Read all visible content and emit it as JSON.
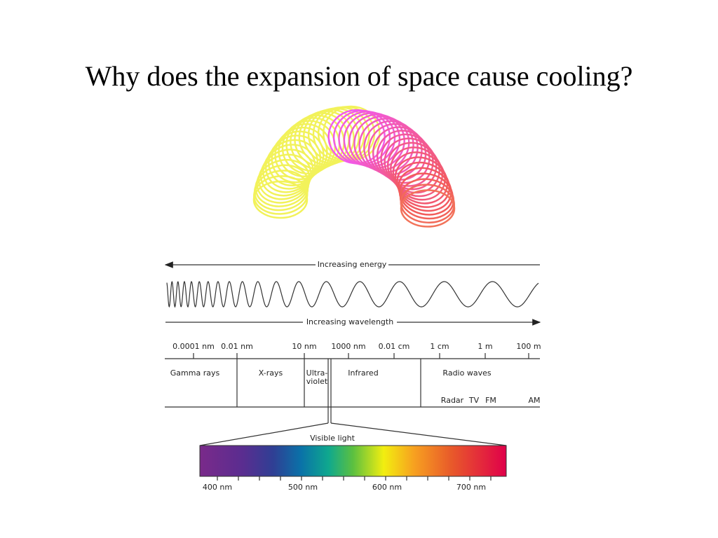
{
  "title": "Why does the expansion of space cause cooling?",
  "diagram": {
    "energy_label": "Increasing energy",
    "wavelength_label": "Increasing wavelength",
    "scale": [
      "0.0001 nm",
      "0.01 nm",
      "10 nm",
      "1000 nm",
      "0.01 cm",
      "1 cm",
      "1 m",
      "100 m"
    ],
    "regions": [
      {
        "lines": [
          "Gamma rays"
        ]
      },
      {
        "lines": [
          "X-rays"
        ]
      },
      {
        "lines": [
          "Ultra-",
          "violet"
        ]
      },
      {
        "lines": [
          "Infrared"
        ]
      },
      {
        "lines": [
          "Radio waves"
        ]
      }
    ],
    "radio_bands": [
      "Radar",
      "TV",
      "FM",
      "AM"
    ],
    "visible_label": "Visible light",
    "visible_scale": [
      "400 nm",
      "500 nm",
      "600 nm",
      "700 nm"
    ]
  }
}
